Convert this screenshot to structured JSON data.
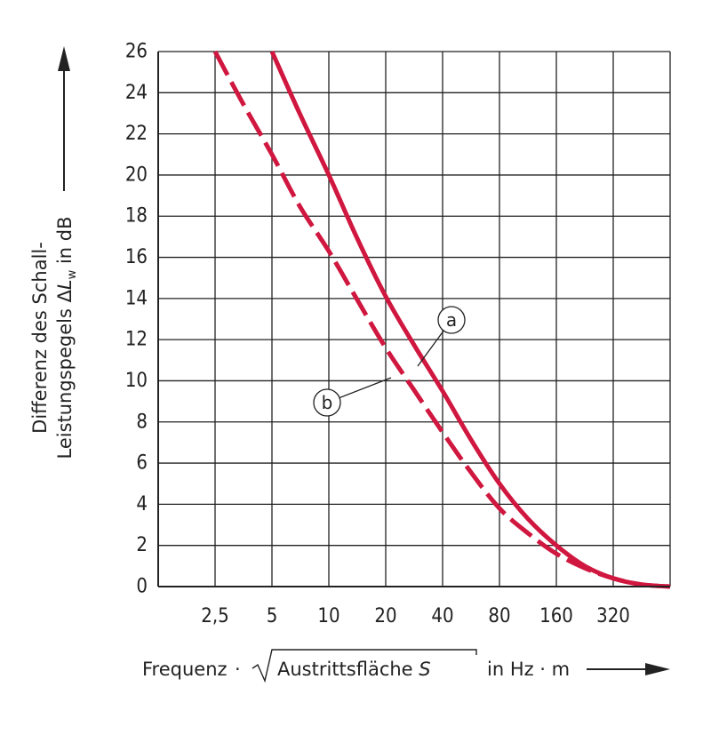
{
  "chart_data": {
    "type": "line",
    "x_scale": "log2",
    "x_ticks": [
      2.5,
      5,
      10,
      20,
      40,
      80,
      160,
      320
    ],
    "x_tick_labels": [
      "2,5",
      "5",
      "10",
      "20",
      "40",
      "80",
      "160",
      "320"
    ],
    "xlim": [
      1.25,
      640
    ],
    "ylim": [
      0,
      26
    ],
    "y_ticks": [
      0,
      2,
      4,
      6,
      8,
      10,
      12,
      14,
      16,
      18,
      20,
      22,
      24,
      26
    ],
    "y_tick_labels": [
      "0",
      "2",
      "4",
      "6",
      "8",
      "10",
      "12",
      "14",
      "16",
      "18",
      "20",
      "22",
      "24",
      "26"
    ],
    "grid": true,
    "xlabel": {
      "prefix": "Frequenz",
      "dot": "·",
      "radicand": "Austrittsfläche ",
      "variable": "S",
      "unit": "in Hz · m"
    },
    "ylabel": {
      "line1": "Differenz des Schall-",
      "line2_prefix": "Leistungspegels Δ",
      "line2_var": "L",
      "line2_sub": "w",
      "line2_suffix": " in  dB"
    },
    "series": [
      {
        "name": "a",
        "style": "solid",
        "color": "#d0173f",
        "x": [
          5,
          7,
          10,
          14,
          20,
          28,
          40,
          56,
          80,
          113,
          160,
          226,
          320,
          452,
          640
        ],
        "y": [
          26,
          23,
          20,
          17,
          14.1,
          11.8,
          9.5,
          7.2,
          5,
          3.3,
          2,
          1.0,
          0.4,
          0.1,
          0
        ]
      },
      {
        "name": "b",
        "style": "dashed",
        "color": "#d0173f",
        "x": [
          2.5,
          3.5,
          5,
          7,
          10,
          14,
          20,
          28,
          40,
          56,
          80,
          113,
          160,
          226,
          320,
          452,
          640
        ],
        "y": [
          26,
          23.5,
          21,
          18.5,
          16.3,
          14,
          11.6,
          9.6,
          7.5,
          5.6,
          3.8,
          2.6,
          1.6,
          0.9,
          0.4,
          0.1,
          0
        ]
      }
    ]
  }
}
